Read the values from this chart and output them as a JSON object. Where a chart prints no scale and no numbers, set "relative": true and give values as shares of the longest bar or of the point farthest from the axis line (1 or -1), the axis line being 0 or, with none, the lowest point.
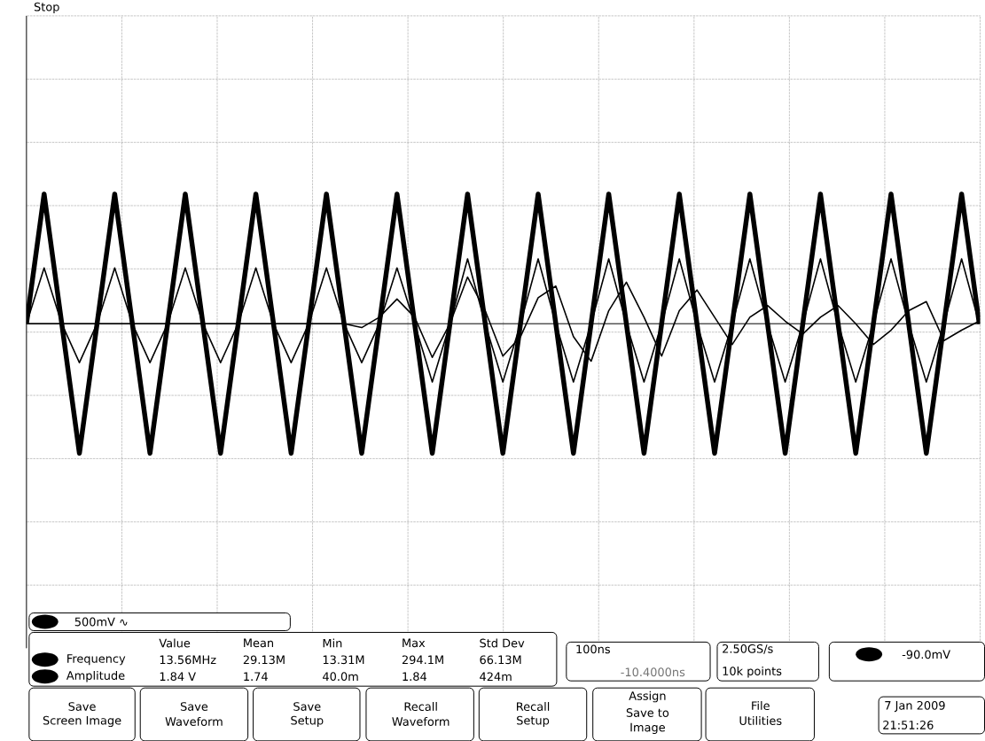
{
  "chart_data": {
    "type": "line",
    "relative": true,
    "title": "Stop",
    "grid": true,
    "categories": [
      null,
      null,
      null,
      null,
      null,
      null,
      null,
      null,
      null,
      null,
      null,
      null,
      null,
      null,
      null,
      null,
      null,
      null,
      null,
      null,
      null,
      null,
      null,
      null,
      null,
      null,
      null,
      null,
      null,
      null,
      null,
      null,
      null,
      null,
      null,
      null,
      null,
      null,
      null,
      null,
      null,
      null,
      null,
      null,
      null,
      null,
      null,
      null,
      null,
      null,
      null,
      null,
      null,
      null,
      null
    ],
    "series": [
      {
        "color": "#000000",
        "values": [
          0,
          1,
          0,
          -1,
          0,
          1,
          0,
          -1,
          0,
          1,
          0,
          -1,
          0,
          1,
          0,
          -1,
          0,
          1,
          0,
          -1,
          0,
          1,
          0,
          -1,
          0,
          1,
          0,
          -1,
          0,
          1,
          0,
          -1,
          0,
          1,
          0,
          -1,
          0,
          1,
          0,
          -1,
          0,
          1,
          0,
          -1,
          0,
          1,
          0,
          -1,
          0,
          1,
          0,
          -1,
          0,
          1,
          0
        ]
      },
      {
        "color": "#000000",
        "values": [
          0,
          0.43,
          0,
          -0.3,
          0,
          0.43,
          0,
          -0.3,
          0,
          0.43,
          0,
          -0.3,
          0,
          0.43,
          0,
          -0.3,
          0,
          0.43,
          0,
          -0.3,
          0,
          0.43,
          0,
          -0.45,
          0,
          0.5,
          0,
          -0.45,
          0,
          0.5,
          0,
          -0.45,
          0,
          0.5,
          0,
          -0.45,
          0,
          0.5,
          0,
          -0.45,
          0,
          0.5,
          0,
          -0.45,
          0,
          0.5,
          0,
          -0.45,
          0,
          0.5,
          0,
          -0.45,
          0,
          0.5,
          0
        ]
      },
      {
        "color": "#000000",
        "values": [
          0,
          0,
          0,
          0,
          0,
          0,
          0,
          0,
          0,
          0,
          0,
          0,
          0,
          0,
          0,
          0,
          0,
          0,
          0,
          -0.03,
          0.05,
          0.19,
          0.05,
          -0.26,
          0,
          0.36,
          0.1,
          -0.25,
          -0.1,
          0.2,
          0.29,
          -0.1,
          -0.29,
          0.1,
          0.32,
          0.05,
          -0.25,
          0.1,
          0.26,
          0.05,
          -0.16,
          0.05,
          0.14,
          0.02,
          -0.08,
          0.05,
          0.14,
          0,
          -0.16,
          -0.05,
          0.1,
          0.17,
          -0.13,
          -0.05,
          0.02
        ]
      }
    ],
    "annotations": [
      "500mV ∿",
      "Value",
      "Mean",
      "Min",
      "Max",
      "Std Dev",
      "Frequency",
      "13.56MHz",
      "29.13M",
      "13.31M",
      "294.1M",
      "66.13M",
      "Amplitude",
      "1.84 V",
      "1.74",
      "40.0m",
      "1.84",
      "424m",
      "100ns",
      "-10.4000ns",
      "2.50GS/s",
      "10k points",
      "-90.0mV",
      "Save",
      "Screen Image",
      "Save",
      "Waveform",
      "Save",
      "Setup",
      "Recall",
      "Waveform",
      "Recall",
      "Setup",
      "Assign",
      "Save to",
      "Image",
      "File",
      "Utilities",
      "7 Jan  2009",
      "21:51:26"
    ]
  }
}
